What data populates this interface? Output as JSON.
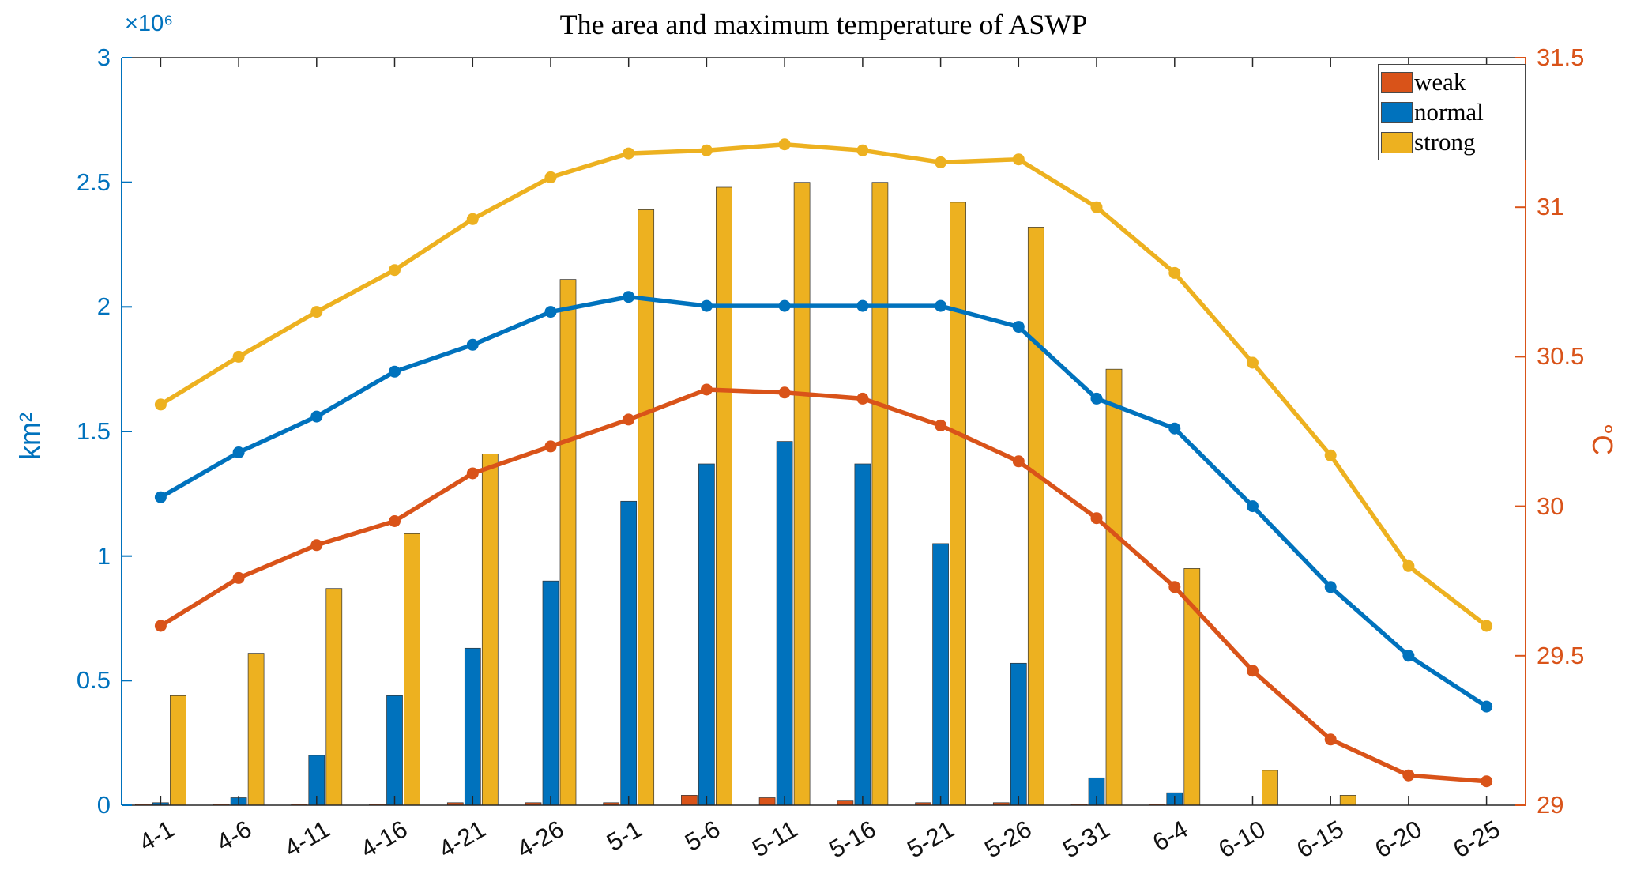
{
  "chart_data": {
    "type": "combo-bar-line",
    "title": "The area and maximum temperature of ASWP",
    "grid": false,
    "legend_position": "top-right",
    "categories": [
      "4-1",
      "4-6",
      "4-11",
      "4-16",
      "4-21",
      "4-26",
      "5-1",
      "5-6",
      "5-11",
      "5-16",
      "5-21",
      "5-26",
      "5-31",
      "6-4",
      "6-10",
      "6-15",
      "6-20",
      "6-25"
    ],
    "left_axis": {
      "label": "km²",
      "multiplier": "×10⁶",
      "range": [
        0,
        3
      ],
      "ticks": [
        0,
        0.5,
        1,
        1.5,
        2,
        2.5,
        3
      ],
      "color": "#0072BD",
      "units_note": "area in 10^6 km^2, bars"
    },
    "right_axis": {
      "label": "°C",
      "range": [
        29,
        31.5
      ],
      "ticks": [
        29,
        29.5,
        30,
        30.5,
        31,
        31.5
      ],
      "color": "#D95319",
      "units_note": "maximum temperature, lines"
    },
    "bar_series": [
      {
        "name": "weak",
        "color": "#D95319",
        "axis": "left",
        "values": [
          0.005,
          0.005,
          0.005,
          0.005,
          0.01,
          0.01,
          0.01,
          0.04,
          0.03,
          0.02,
          0.01,
          0.01,
          0.005,
          0.005,
          0,
          0,
          0,
          0
        ]
      },
      {
        "name": "normal",
        "color": "#0072BD",
        "axis": "left",
        "values": [
          0.01,
          0.03,
          0.2,
          0.44,
          0.63,
          0.9,
          1.22,
          1.37,
          1.46,
          1.37,
          1.05,
          0.57,
          0.11,
          0.05,
          0,
          0,
          0,
          0
        ]
      },
      {
        "name": "strong",
        "color": "#EDB120",
        "axis": "left",
        "values": [
          0.44,
          0.61,
          0.87,
          1.09,
          1.41,
          2.11,
          2.39,
          2.48,
          2.5,
          2.5,
          2.42,
          2.32,
          1.75,
          0.95,
          0.14,
          0.04,
          0,
          0
        ]
      }
    ],
    "line_series": [
      {
        "name": "weak",
        "color": "#D95319",
        "axis": "right",
        "values": [
          29.6,
          29.76,
          29.87,
          29.95,
          30.11,
          30.2,
          30.29,
          30.39,
          30.38,
          30.36,
          30.27,
          30.15,
          29.96,
          29.73,
          29.45,
          29.22,
          29.1,
          29.08
        ]
      },
      {
        "name": "normal",
        "color": "#0072BD",
        "axis": "right",
        "values": [
          30.03,
          30.18,
          30.3,
          30.45,
          30.54,
          30.65,
          30.7,
          30.67,
          30.67,
          30.67,
          30.67,
          30.6,
          30.36,
          30.26,
          30.0,
          29.73,
          29.5,
          29.33
        ]
      },
      {
        "name": "strong",
        "color": "#EDB120",
        "axis": "right",
        "values": [
          30.34,
          30.5,
          30.65,
          30.79,
          30.96,
          31.1,
          31.18,
          31.19,
          31.21,
          31.19,
          31.15,
          31.16,
          31.0,
          30.78,
          30.48,
          30.17,
          29.8,
          29.6
        ]
      }
    ],
    "legend": [
      {
        "label": "weak",
        "color": "#D95319"
      },
      {
        "label": "normal",
        "color": "#0072BD"
      },
      {
        "label": "strong",
        "color": "#EDB120"
      }
    ]
  }
}
